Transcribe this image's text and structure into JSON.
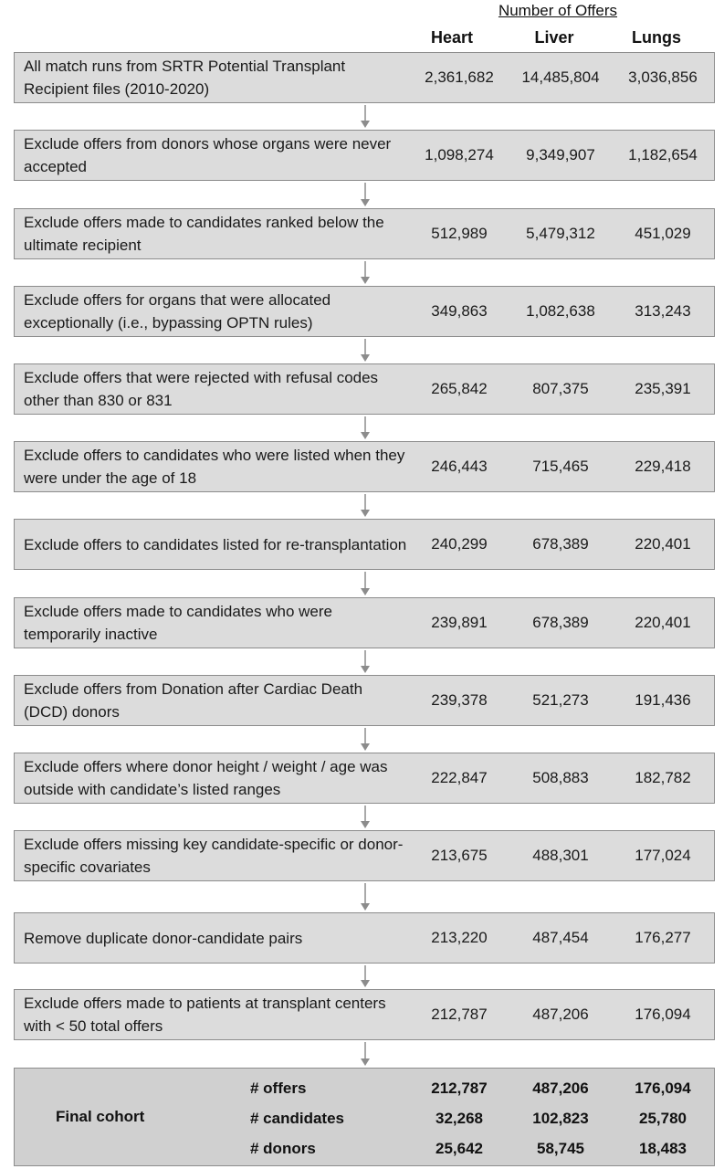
{
  "header": {
    "title": "Number of Offers",
    "columns": [
      "Heart",
      "Liver",
      "Lungs"
    ]
  },
  "steps": [
    {
      "desc": "All match runs from SRTR Potential Transplant Recipient files (2010-2020)",
      "heart": "2,361,682",
      "liver": "14,485,804",
      "lungs": "3,036,856"
    },
    {
      "desc": "Exclude offers from donors whose organs were never accepted",
      "heart": "1,098,274",
      "liver": "9,349,907",
      "lungs": "1,182,654"
    },
    {
      "desc": "Exclude offers made to candidates ranked below the ultimate recipient",
      "heart": "512,989",
      "liver": "5,479,312",
      "lungs": "451,029"
    },
    {
      "desc": "Exclude offers for organs that were allocated exceptionally (i.e., bypassing OPTN rules)",
      "heart": "349,863",
      "liver": "1,082,638",
      "lungs": "313,243"
    },
    {
      "desc": "Exclude offers that were rejected with refusal codes other than 830 or 831",
      "heart": "265,842",
      "liver": "807,375",
      "lungs": "235,391"
    },
    {
      "desc": "Exclude offers to candidates who were listed when they were under the age of 18",
      "heart": "246,443",
      "liver": "715,465",
      "lungs": "229,418"
    },
    {
      "desc": "Exclude offers to candidates listed for re-transplantation",
      "heart": "240,299",
      "liver": "678,389",
      "lungs": "220,401"
    },
    {
      "desc": "Exclude offers made to candidates who were temporarily inactive",
      "heart": "239,891",
      "liver": "678,389",
      "lungs": "220,401"
    },
    {
      "desc": "Exclude offers from Donation after Cardiac Death (DCD) donors",
      "heart": "239,378",
      "liver": "521,273",
      "lungs": "191,436"
    },
    {
      "desc": "Exclude offers where donor height / weight / age was outside with candidate’s listed ranges",
      "heart": "222,847",
      "liver": "508,883",
      "lungs": "182,782"
    },
    {
      "desc": "Exclude offers missing key candidate-specific or donor-specific covariates",
      "heart": "213,675",
      "liver": "488,301",
      "lungs": "177,024"
    },
    {
      "desc": "Remove duplicate donor-candidate pairs",
      "heart": "213,220",
      "liver": "487,454",
      "lungs": "176,277"
    },
    {
      "desc": "Exclude offers made to patients at transplant centers with < 50 total offers",
      "heart": "212,787",
      "liver": "487,206",
      "lungs": "176,094"
    }
  ],
  "final": {
    "label": "Final cohort",
    "rows": [
      {
        "metric": "# offers",
        "heart": "212,787",
        "liver": "487,206",
        "lungs": "176,094"
      },
      {
        "metric": "# candidates",
        "heart": "32,268",
        "liver": "102,823",
        "lungs": "25,780"
      },
      {
        "metric": "# donors",
        "heart": "25,642",
        "liver": "58,745",
        "lungs": "18,483"
      }
    ]
  },
  "colors": {
    "box_fill": "#dcdcdc",
    "final_fill": "#d0d0d0",
    "border": "#8c8c8c",
    "arrow": "#8c8c8c"
  }
}
